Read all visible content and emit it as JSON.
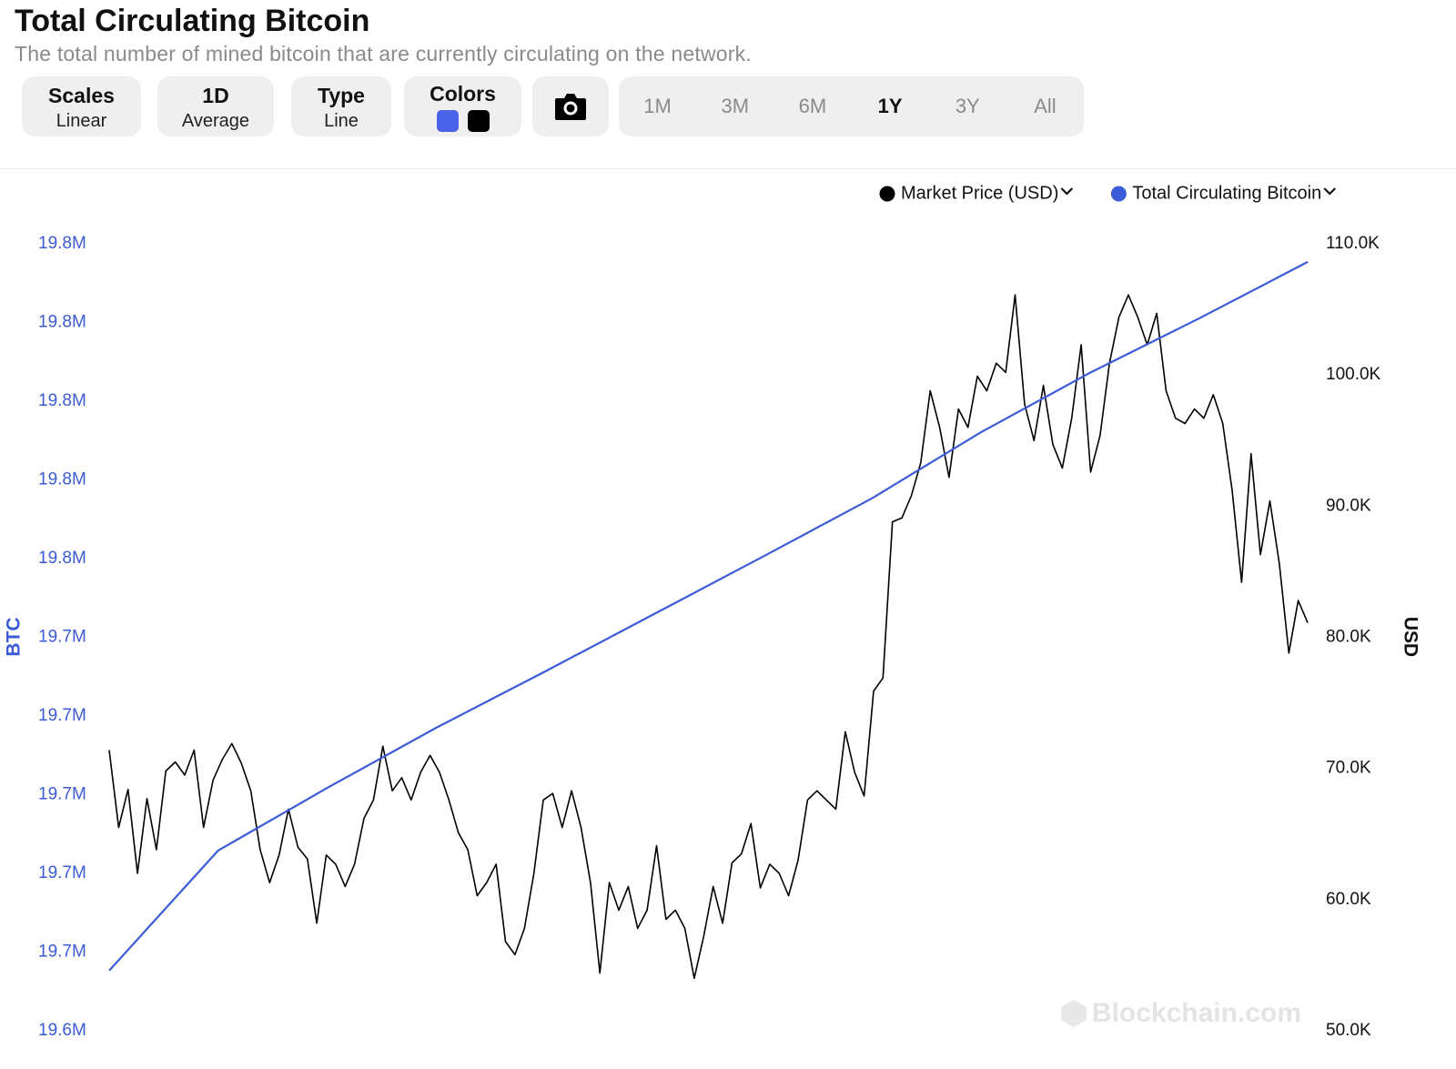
{
  "header": {
    "title": "Total Circulating Bitcoin",
    "subtitle": "The total number of mined bitcoin that are currently circulating on the network."
  },
  "buttons": [
    {
      "title": "Scales",
      "subtitle": "Linear"
    },
    {
      "title": "1D",
      "subtitle": "Average"
    },
    {
      "title": "Type",
      "subtitle": "Line"
    }
  ],
  "colors_button": {
    "title": "Colors",
    "colors": [
      "#4a63e8",
      "#000000"
    ]
  },
  "ranges": [
    "1M",
    "3M",
    "6M",
    "1Y",
    "3Y",
    "All"
  ],
  "active_range": 3,
  "chart_data": {
    "type": "line",
    "ylabel": "BTC",
    "y2label": "USD",
    "watermark": "Blockchain.com",
    "grid": false,
    "legend": "top-right",
    "ylim": [
      19640000,
      19840000
    ],
    "yticks": [
      {
        "value": 19640000,
        "label": "19.6M"
      },
      {
        "value": 19660000,
        "label": "19.7M"
      },
      {
        "value": 19680000,
        "label": "19.7M"
      },
      {
        "value": 19700000,
        "label": "19.7M"
      },
      {
        "value": 19720000,
        "label": "19.7M"
      },
      {
        "value": 19740000,
        "label": "19.7M"
      },
      {
        "value": 19760000,
        "label": "19.8M"
      },
      {
        "value": 19780000,
        "label": "19.8M"
      },
      {
        "value": 19800000,
        "label": "19.8M"
      },
      {
        "value": 19820000,
        "label": "19.8M"
      },
      {
        "value": 19840000,
        "label": "19.8M"
      }
    ],
    "y2lim": [
      50000,
      110000
    ],
    "y2ticks": [
      {
        "value": 50000,
        "label": "50.0K"
      },
      {
        "value": 60000,
        "label": "60.0K"
      },
      {
        "value": 70000,
        "label": "70.0K"
      },
      {
        "value": 80000,
        "label": "80.0K"
      },
      {
        "value": 90000,
        "label": "90.0K"
      },
      {
        "value": 100000,
        "label": "100.0K"
      },
      {
        "value": 110000,
        "label": "110.0K"
      }
    ],
    "series": [
      {
        "name": "Market Price (USD)",
        "color": "#000000",
        "axis": "y2",
        "values": [
          71400,
          65500,
          68400,
          62000,
          67700,
          63800,
          69800,
          70500,
          69500,
          71400,
          65500,
          69100,
          70700,
          71900,
          70400,
          68300,
          63800,
          61300,
          63400,
          66900,
          64000,
          63100,
          58200,
          63400,
          62700,
          61000,
          62700,
          66200,
          67600,
          71700,
          68300,
          69300,
          67600,
          69700,
          71000,
          69700,
          67600,
          65100,
          63800,
          60300,
          61300,
          62700,
          56800,
          55800,
          57800,
          62000,
          67600,
          68100,
          65500,
          68300,
          65500,
          61300,
          54400,
          61300,
          59200,
          61000,
          57800,
          59200,
          64100,
          58500,
          59200,
          57800,
          54000,
          57200,
          61000,
          58200,
          62800,
          63500,
          65800,
          60900,
          62700,
          62000,
          60300,
          63000,
          67600,
          68300,
          67600,
          66900,
          72800,
          69700,
          67900,
          75900,
          76900,
          88800,
          89100,
          90800,
          93300,
          98800,
          96000,
          92200,
          97400,
          96000,
          99900,
          98800,
          100900,
          100200,
          106100,
          97800,
          95000,
          99200,
          94700,
          92900,
          96700,
          102300,
          92600,
          95400,
          100900,
          104400,
          106100,
          104400,
          102300,
          104700,
          98800,
          96700,
          96300,
          97400,
          96700,
          98500,
          96300,
          91200,
          84200,
          94000,
          86300,
          90400,
          85600,
          78800,
          82800,
          81100
        ]
      },
      {
        "name": "Total Circulating Bitcoin",
        "color": "#3c5bd6",
        "axis": "y",
        "values": [
          19655300,
          19685800,
          19701700,
          19717000,
          19731300,
          19745900,
          19760500,
          19775300,
          19792100,
          19807200,
          19821000,
          19835400
        ]
      }
    ]
  }
}
